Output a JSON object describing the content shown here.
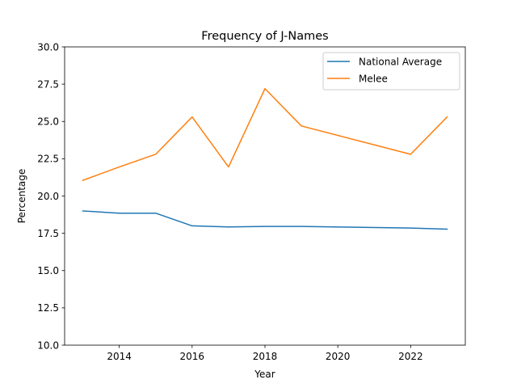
{
  "chart_data": {
    "type": "line",
    "title": "Frequency of J-Names",
    "xlabel": "Year",
    "ylabel": "Percentage",
    "xlim": [
      2012.5,
      2023.5
    ],
    "ylim": [
      10.0,
      30.0
    ],
    "x_ticks": [
      2014,
      2016,
      2018,
      2020,
      2022
    ],
    "y_ticks": [
      10.0,
      12.5,
      15.0,
      17.5,
      20.0,
      22.5,
      25.0,
      27.5,
      30.0
    ],
    "x_tick_labels": [
      "2014",
      "2016",
      "2018",
      "2020",
      "2022"
    ],
    "y_tick_labels": [
      "10.0",
      "12.5",
      "15.0",
      "17.5",
      "20.0",
      "22.5",
      "25.0",
      "27.5",
      "30.0"
    ],
    "grid": false,
    "legend_position": "top-right",
    "x": [
      2013,
      2014,
      2015,
      2016,
      2017,
      2018,
      2019,
      2022,
      2023
    ],
    "series": [
      {
        "name": "National Average",
        "color": "#1f77b4",
        "values": [
          19.0,
          18.85,
          18.85,
          18.0,
          17.93,
          17.96,
          17.96,
          17.85,
          17.78
        ]
      },
      {
        "name": "Melee",
        "color": "#ff7f0e",
        "values": [
          21.05,
          21.95,
          22.8,
          25.3,
          21.95,
          27.2,
          24.7,
          22.8,
          25.3
        ]
      }
    ]
  }
}
